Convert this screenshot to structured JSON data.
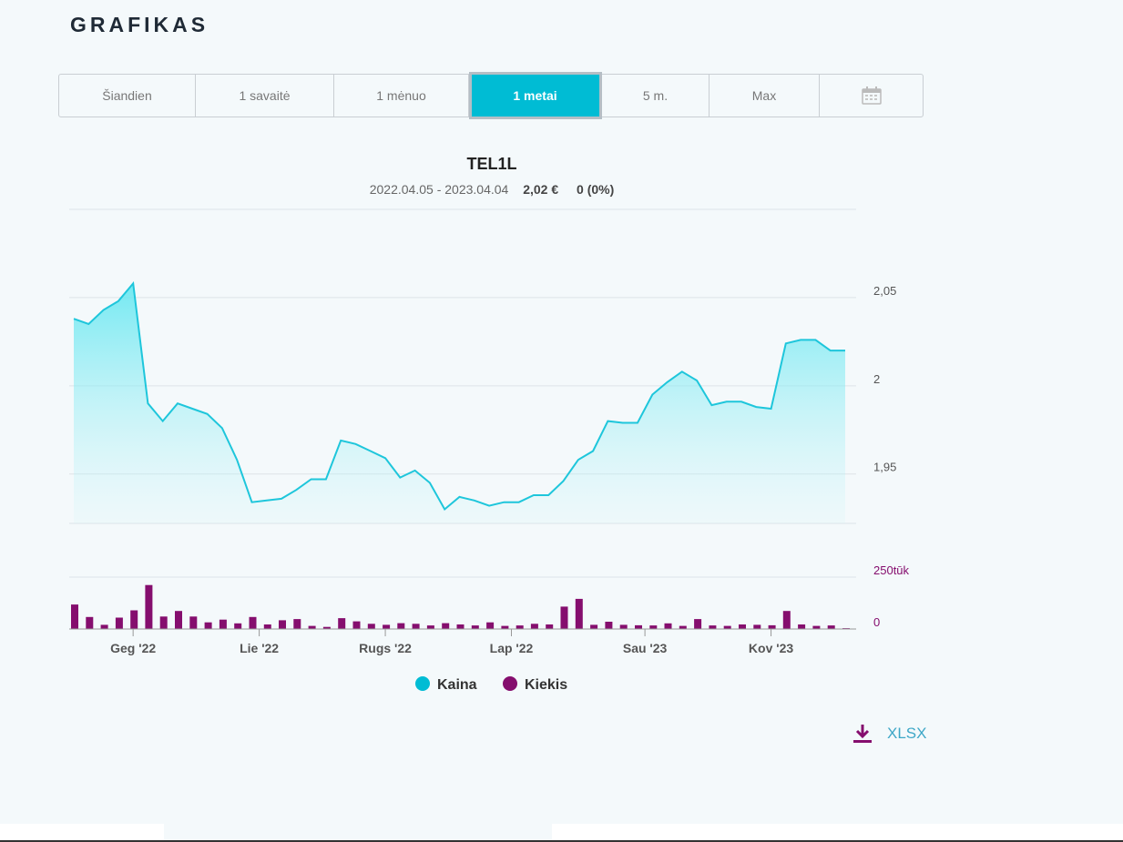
{
  "heading": "GRAFIKAS",
  "ranges": [
    {
      "label": "Šiandien",
      "active": false
    },
    {
      "label": "1 savaitė",
      "active": false
    },
    {
      "label": "1 mėnuo",
      "active": false
    },
    {
      "label": "1 metai",
      "active": true
    },
    {
      "label": "5 m.",
      "active": false
    },
    {
      "label": "Max",
      "active": false
    }
  ],
  "calendar_icon": "calendar-icon",
  "download": {
    "label": "XLSX",
    "icon": "download-icon"
  },
  "colors": {
    "accent": "#00bcd4",
    "price_line": "#1ec6db",
    "volume": "#850e6e"
  },
  "chart_data": {
    "type": "line",
    "title": "TEL1L",
    "subtitle": {
      "date_range": "2022.04.05 - 2023.04.04",
      "price": "2,02 €",
      "change": "0 (0%)"
    },
    "price_axis": {
      "ticks": [
        1.95,
        2.0,
        2.05
      ],
      "tick_labels": [
        "1,95",
        "2",
        "2,05"
      ],
      "ylim": [
        1.922,
        2.1
      ],
      "grid": true
    },
    "volume_axis": {
      "ticks": [
        0,
        250
      ],
      "tick_labels": [
        "0",
        "250tūk"
      ],
      "ylim": [
        0,
        250
      ]
    },
    "x_tick_labels": [
      "Geg '22",
      "Lie '22",
      "Rugs '22",
      "Lap '22",
      "Sau '23",
      "Kov '23"
    ],
    "x_tick_week_index": [
      4,
      12.5,
      21,
      29.5,
      38.5,
      47
    ],
    "legend": {
      "placement": "bottom",
      "items": [
        {
          "name": "Kaina",
          "color": "#00bcd4"
        },
        {
          "name": "Kiekis",
          "color": "#850e6e"
        }
      ]
    },
    "series": [
      {
        "name": "Kaina",
        "kind": "area-line",
        "values": [
          2.038,
          2.035,
          2.043,
          2.048,
          2.058,
          1.99,
          1.98,
          1.99,
          1.987,
          1.984,
          1.976,
          1.958,
          1.934,
          1.935,
          1.936,
          1.941,
          1.947,
          1.947,
          1.969,
          1.967,
          1.963,
          1.959,
          1.948,
          1.952,
          1.945,
          1.93,
          1.937,
          1.935,
          1.932,
          1.934,
          1.934,
          1.938,
          1.938,
          1.946,
          1.958,
          1.963,
          1.98,
          1.979,
          1.979,
          1.995,
          2.002,
          2.008,
          2.003,
          1.989,
          1.991,
          1.991,
          1.988,
          1.987,
          2.024,
          2.026,
          2.026,
          2.02,
          2.02
        ]
      },
      {
        "name": "Kiekis",
        "kind": "column",
        "values": [
          118,
          58,
          20,
          55,
          90,
          212,
          60,
          87,
          60,
          32,
          45,
          27,
          58,
          22,
          42,
          48,
          15,
          10,
          52,
          37,
          25,
          20,
          28,
          25,
          17,
          28,
          22,
          17,
          32,
          15,
          17,
          25,
          22,
          108,
          145,
          20,
          35,
          20,
          18,
          17,
          27,
          15,
          48,
          17,
          15,
          22,
          20,
          18,
          87,
          22,
          15,
          17,
          4
        ]
      }
    ]
  }
}
